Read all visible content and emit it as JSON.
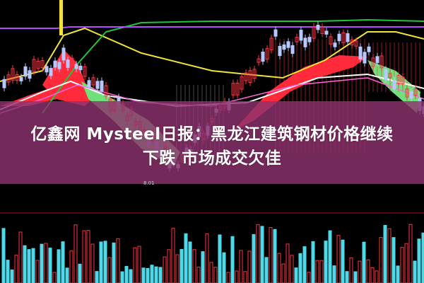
{
  "headline": {
    "line1": "亿鑫网 Mysteel日报：黑龙江建筑钢材价格继续",
    "line2": "下跌 市场成交欠佳"
  },
  "chart": {
    "low_price_label": "8.01",
    "colors": {
      "background": "#000000",
      "up": "#ff3344",
      "down": "#b8c8ff",
      "ribbon_up": "#ff2a3a",
      "ribbon_down": "#6fe07a",
      "ma_yellow": "#f2e23a",
      "ma_green": "#22c43a",
      "ma_purple": "#b34cff",
      "ma_white": "#ffffff",
      "volume_up": "#ff3344",
      "volume_down": "#4fd8e8",
      "overlay": "#8c326e"
    }
  }
}
